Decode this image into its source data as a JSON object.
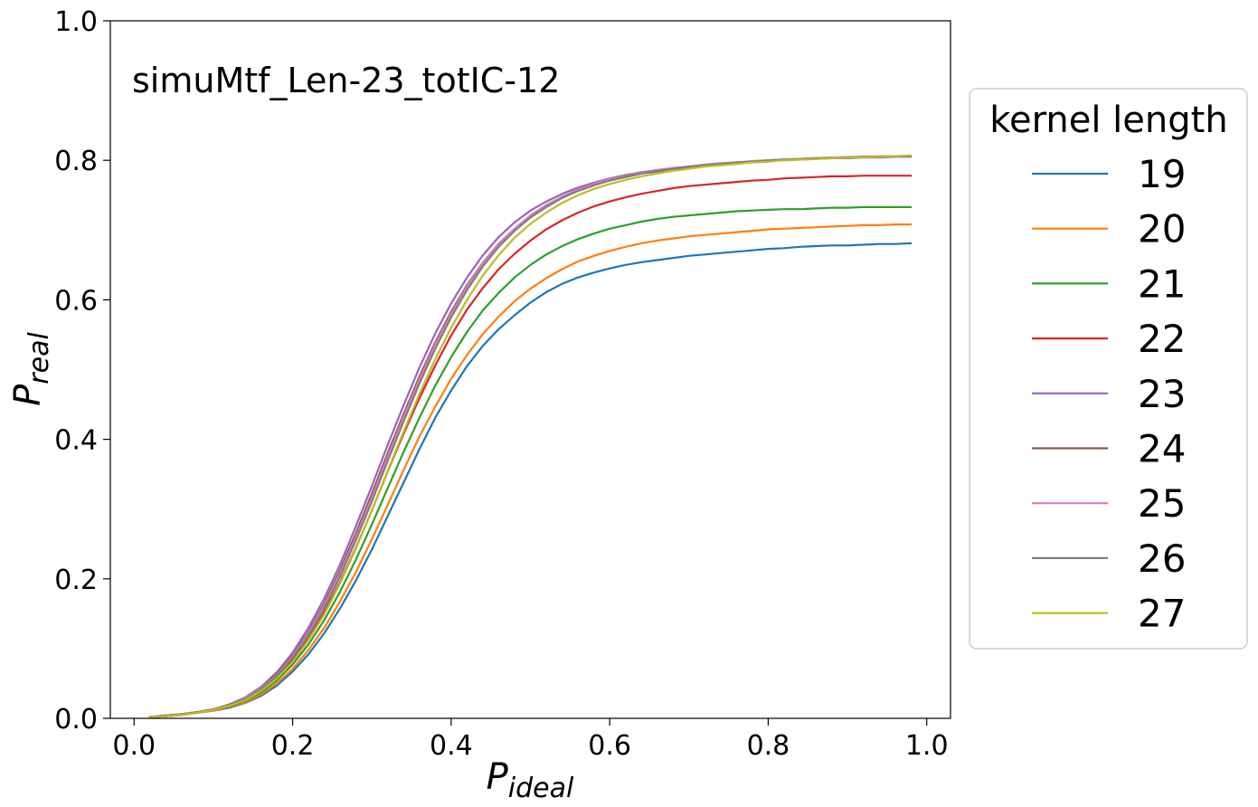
{
  "chart_data": {
    "type": "line",
    "annotation": "simuMtf_Len-23_totIC-12",
    "xlabel": {
      "main": "P",
      "sub": "ideal"
    },
    "ylabel": {
      "main": "P",
      "sub": "real"
    },
    "xlim": [
      -0.03,
      1.03
    ],
    "ylim": [
      0.0,
      1.0
    ],
    "xticks": [
      "0.0",
      "0.2",
      "0.4",
      "0.6",
      "0.8",
      "1.0"
    ],
    "yticks": [
      "0.0",
      "0.2",
      "0.4",
      "0.6",
      "0.8",
      "1.0"
    ],
    "grid": false,
    "legend": {
      "title": "kernel length",
      "position": "outside-right"
    },
    "x": [
      0.02,
      0.04,
      0.06,
      0.08,
      0.1,
      0.12,
      0.14,
      0.16,
      0.18,
      0.2,
      0.22,
      0.24,
      0.26,
      0.28,
      0.3,
      0.32,
      0.34,
      0.36,
      0.38,
      0.4,
      0.42,
      0.44,
      0.46,
      0.48,
      0.5,
      0.52,
      0.54,
      0.56,
      0.58,
      0.6,
      0.62,
      0.64,
      0.66,
      0.68,
      0.7,
      0.72,
      0.74,
      0.76,
      0.78,
      0.8,
      0.82,
      0.84,
      0.86,
      0.88,
      0.9,
      0.92,
      0.94,
      0.96,
      0.98
    ],
    "series": [
      {
        "name": "19",
        "color": "#1f77b4",
        "values": [
          0.002,
          0.003,
          0.005,
          0.008,
          0.011,
          0.015,
          0.022,
          0.032,
          0.047,
          0.067,
          0.092,
          0.122,
          0.158,
          0.198,
          0.242,
          0.29,
          0.338,
          0.386,
          0.431,
          0.47,
          0.505,
          0.534,
          0.558,
          0.578,
          0.596,
          0.611,
          0.623,
          0.632,
          0.639,
          0.645,
          0.65,
          0.654,
          0.657,
          0.66,
          0.663,
          0.665,
          0.667,
          0.669,
          0.671,
          0.673,
          0.674,
          0.676,
          0.677,
          0.678,
          0.678,
          0.679,
          0.68,
          0.68,
          0.681
        ]
      },
      {
        "name": "20",
        "color": "#ff7f0e",
        "values": [
          0.002,
          0.003,
          0.005,
          0.008,
          0.011,
          0.016,
          0.023,
          0.034,
          0.05,
          0.071,
          0.098,
          0.13,
          0.168,
          0.21,
          0.257,
          0.306,
          0.356,
          0.404,
          0.447,
          0.487,
          0.521,
          0.551,
          0.576,
          0.598,
          0.616,
          0.631,
          0.644,
          0.655,
          0.663,
          0.67,
          0.676,
          0.681,
          0.685,
          0.688,
          0.691,
          0.693,
          0.695,
          0.697,
          0.699,
          0.701,
          0.702,
          0.703,
          0.704,
          0.705,
          0.706,
          0.707,
          0.707,
          0.708,
          0.708
        ]
      },
      {
        "name": "21",
        "color": "#2ca02c",
        "values": [
          0.002,
          0.003,
          0.005,
          0.008,
          0.012,
          0.017,
          0.025,
          0.037,
          0.054,
          0.077,
          0.106,
          0.141,
          0.182,
          0.228,
          0.278,
          0.33,
          0.382,
          0.431,
          0.477,
          0.518,
          0.554,
          0.585,
          0.61,
          0.632,
          0.65,
          0.665,
          0.677,
          0.687,
          0.695,
          0.702,
          0.707,
          0.712,
          0.716,
          0.719,
          0.721,
          0.723,
          0.725,
          0.727,
          0.728,
          0.729,
          0.73,
          0.73,
          0.731,
          0.732,
          0.732,
          0.733,
          0.733,
          0.733,
          0.733
        ]
      },
      {
        "name": "22",
        "color": "#d62728",
        "values": [
          0.002,
          0.003,
          0.005,
          0.008,
          0.012,
          0.018,
          0.027,
          0.04,
          0.058,
          0.083,
          0.114,
          0.152,
          0.196,
          0.245,
          0.298,
          0.354,
          0.408,
          0.459,
          0.506,
          0.549,
          0.586,
          0.617,
          0.644,
          0.666,
          0.685,
          0.701,
          0.714,
          0.725,
          0.734,
          0.741,
          0.747,
          0.752,
          0.756,
          0.76,
          0.763,
          0.765,
          0.767,
          0.769,
          0.771,
          0.772,
          0.774,
          0.775,
          0.776,
          0.777,
          0.777,
          0.778,
          0.778,
          0.778,
          0.778
        ]
      },
      {
        "name": "23",
        "color": "#9467bd",
        "values": [
          0.002,
          0.004,
          0.006,
          0.009,
          0.013,
          0.02,
          0.03,
          0.045,
          0.066,
          0.094,
          0.13,
          0.172,
          0.221,
          0.276,
          0.333,
          0.392,
          0.449,
          0.503,
          0.552,
          0.595,
          0.632,
          0.664,
          0.69,
          0.711,
          0.728,
          0.741,
          0.752,
          0.761,
          0.768,
          0.774,
          0.779,
          0.783,
          0.786,
          0.789,
          0.791,
          0.793,
          0.795,
          0.797,
          0.798,
          0.799,
          0.8,
          0.801,
          0.802,
          0.803,
          0.803,
          0.804,
          0.804,
          0.805,
          0.805
        ]
      },
      {
        "name": "24",
        "color": "#8c564b",
        "values": [
          0.002,
          0.004,
          0.006,
          0.009,
          0.013,
          0.019,
          0.029,
          0.043,
          0.063,
          0.09,
          0.124,
          0.165,
          0.213,
          0.266,
          0.322,
          0.38,
          0.436,
          0.49,
          0.539,
          0.583,
          0.621,
          0.653,
          0.68,
          0.702,
          0.72,
          0.735,
          0.747,
          0.757,
          0.765,
          0.771,
          0.776,
          0.781,
          0.784,
          0.788,
          0.79,
          0.793,
          0.795,
          0.797,
          0.798,
          0.8,
          0.801,
          0.802,
          0.803,
          0.804,
          0.804,
          0.805,
          0.805,
          0.806,
          0.806
        ]
      },
      {
        "name": "25",
        "color": "#e377c2",
        "values": [
          0.002,
          0.004,
          0.006,
          0.009,
          0.013,
          0.019,
          0.029,
          0.043,
          0.062,
          0.089,
          0.122,
          0.162,
          0.209,
          0.261,
          0.317,
          0.375,
          0.432,
          0.486,
          0.536,
          0.58,
          0.619,
          0.652,
          0.679,
          0.702,
          0.721,
          0.736,
          0.748,
          0.758,
          0.766,
          0.773,
          0.778,
          0.782,
          0.786,
          0.789,
          0.791,
          0.794,
          0.796,
          0.797,
          0.799,
          0.8,
          0.801,
          0.802,
          0.803,
          0.804,
          0.805,
          0.805,
          0.806,
          0.806,
          0.806
        ]
      },
      {
        "name": "26",
        "color": "#7f7f7f",
        "values": [
          0.002,
          0.004,
          0.006,
          0.009,
          0.013,
          0.019,
          0.028,
          0.042,
          0.061,
          0.087,
          0.119,
          0.158,
          0.204,
          0.256,
          0.311,
          0.369,
          0.426,
          0.48,
          0.53,
          0.575,
          0.614,
          0.648,
          0.676,
          0.699,
          0.718,
          0.733,
          0.746,
          0.756,
          0.764,
          0.771,
          0.777,
          0.781,
          0.785,
          0.788,
          0.791,
          0.793,
          0.795,
          0.797,
          0.798,
          0.8,
          0.801,
          0.802,
          0.803,
          0.803,
          0.804,
          0.805,
          0.805,
          0.806,
          0.806
        ]
      },
      {
        "name": "27",
        "color": "#bcbd22",
        "values": [
          0.002,
          0.003,
          0.005,
          0.008,
          0.012,
          0.018,
          0.026,
          0.039,
          0.057,
          0.081,
          0.112,
          0.149,
          0.194,
          0.244,
          0.298,
          0.355,
          0.411,
          0.465,
          0.515,
          0.56,
          0.6,
          0.635,
          0.664,
          0.689,
          0.709,
          0.725,
          0.739,
          0.75,
          0.759,
          0.766,
          0.772,
          0.777,
          0.781,
          0.785,
          0.788,
          0.791,
          0.793,
          0.795,
          0.797,
          0.798,
          0.8,
          0.801,
          0.802,
          0.803,
          0.804,
          0.804,
          0.805,
          0.806,
          0.807
        ]
      }
    ]
  }
}
